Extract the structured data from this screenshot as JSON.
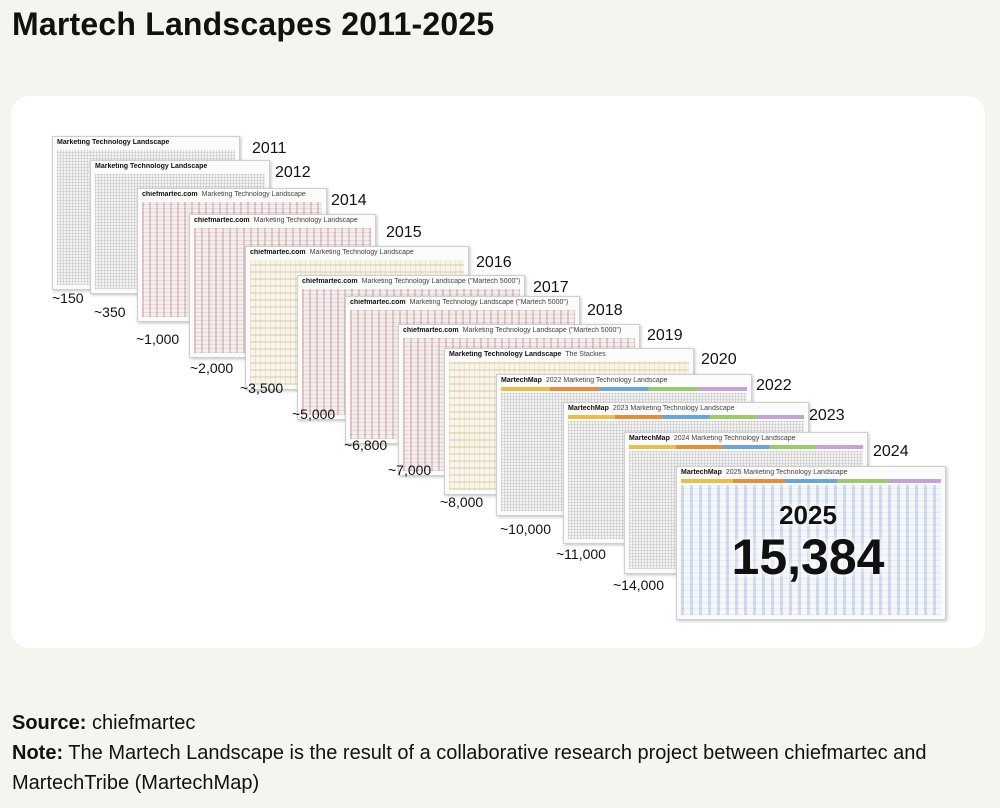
{
  "title": "Martech Landscapes 2011-2025",
  "chart_data": {
    "type": "table",
    "title": "Martech Landscapes 2011-2025",
    "series_name": "Number of martech solutions",
    "years": [
      "2011",
      "2012",
      "2014",
      "2015",
      "2016",
      "2017",
      "2018",
      "2019",
      "2020",
      "2022",
      "2023",
      "2024",
      "2025"
    ],
    "counts": [
      "~150",
      "~350",
      "~1,000",
      "~2,000",
      "~3,500",
      "~5,000",
      "~6,800",
      "~7,000",
      "~8,000",
      "~10,000",
      "~11,000",
      "~14,000",
      "15,384"
    ],
    "values": [
      150,
      350,
      1000,
      2000,
      3500,
      5000,
      6800,
      7000,
      8000,
      10000,
      11000,
      14000,
      15384
    ],
    "highlight": {
      "year": "2025",
      "count": "15,384"
    },
    "thumbnails": [
      {
        "brand": "Marketing Technology Landscape",
        "sub": ""
      },
      {
        "brand": "Marketing Technology Landscape",
        "sub": ""
      },
      {
        "brand": "chiefmartec.com",
        "sub": "Marketing Technology Landscape"
      },
      {
        "brand": "chiefmartec.com",
        "sub": "Marketing Technology Landscape"
      },
      {
        "brand": "chiefmartec.com",
        "sub": "Marketing Technology Landscape"
      },
      {
        "brand": "chiefmartec.com",
        "sub": "Marketing Technology Landscape (\"Martech 5000\")"
      },
      {
        "brand": "chiefmartec.com",
        "sub": "Marketing Technology Landscape (\"Martech 5000\")"
      },
      {
        "brand": "chiefmartec.com",
        "sub": "Marketing Technology Landscape (\"Martech 5000\")"
      },
      {
        "brand": "Marketing Technology Landscape",
        "sub": "The Stackies"
      },
      {
        "brand": "MartechMap",
        "sub": "2022 Marketing Technology Landscape"
      },
      {
        "brand": "MartechMap",
        "sub": "2023 Marketing Technology Landscape"
      },
      {
        "brand": "MartechMap",
        "sub": "2024 Marketing Technology Landscape"
      },
      {
        "brand": "MartechMap",
        "sub": "2025 Marketing Technology Landscape"
      }
    ]
  },
  "footer": {
    "source_label": "Source:",
    "source_value": " chiefmartec",
    "note_label": "Note:",
    "note_value": " The Martech Landscape is the result of  a collaborative research project between chiefmartec and MartechTribe (MartechMap)"
  }
}
